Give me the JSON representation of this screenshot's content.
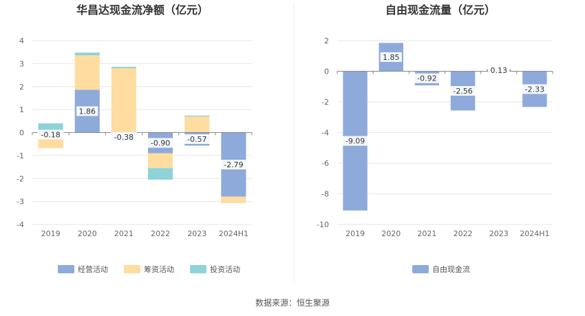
{
  "colors": {
    "operating": "#8eaadb",
    "financing": "#ffdca0",
    "investing": "#8dd3d8",
    "free_cash_flow": "#8eaadb",
    "grid": "#e6e6e6",
    "axis": "#888888",
    "divider": "#eeeeee",
    "label_bg": "#ffffff"
  },
  "chart_data": [
    {
      "type": "bar",
      "stacked": true,
      "title": "华昌达现金流净额（亿元）",
      "categories": [
        "2019",
        "2020",
        "2021",
        "2022",
        "2023",
        "2024H1"
      ],
      "ylim": [
        -4,
        4
      ],
      "yticks": [
        "-4",
        "-3",
        "-2",
        "-1",
        "0",
        "1",
        "2",
        "3",
        "4"
      ],
      "series": [
        {
          "name": "经营活动",
          "color_key": "operating",
          "values": [
            -0.18,
            1.86,
            -0.38,
            -0.9,
            -0.57,
            -2.79
          ],
          "labels": [
            "-0.18",
            "1.86",
            "-0.38",
            "-0.90",
            "-0.57",
            "-2.79"
          ]
        },
        {
          "name": "筹资活动",
          "color_key": "financing",
          "values": [
            -0.5,
            1.5,
            2.8,
            -0.65,
            0.7,
            -0.28
          ]
        },
        {
          "name": "投资活动",
          "color_key": "investing",
          "values": [
            0.4,
            0.12,
            0.06,
            -0.5,
            0.04,
            0.0
          ]
        }
      ],
      "legend_position": "bottom"
    },
    {
      "type": "bar",
      "title": "自由现金流量（亿元）",
      "categories": [
        "2019",
        "2020",
        "2021",
        "2022",
        "2023",
        "2024H1"
      ],
      "ylim": [
        -10,
        2
      ],
      "yticks": [
        "-10",
        "-8",
        "-6",
        "-4",
        "-2",
        "0",
        "2"
      ],
      "series": [
        {
          "name": "自由现金流",
          "color_key": "free_cash_flow",
          "values": [
            -9.09,
            1.85,
            -0.92,
            -2.56,
            0.13,
            -2.33
          ],
          "labels": [
            "-9.09",
            "1.85",
            "-0.92",
            "-2.56",
            "0.13",
            "-2.33"
          ]
        }
      ],
      "legend_position": "bottom"
    }
  ],
  "footer": {
    "source": "数据来源：恒生聚源"
  }
}
